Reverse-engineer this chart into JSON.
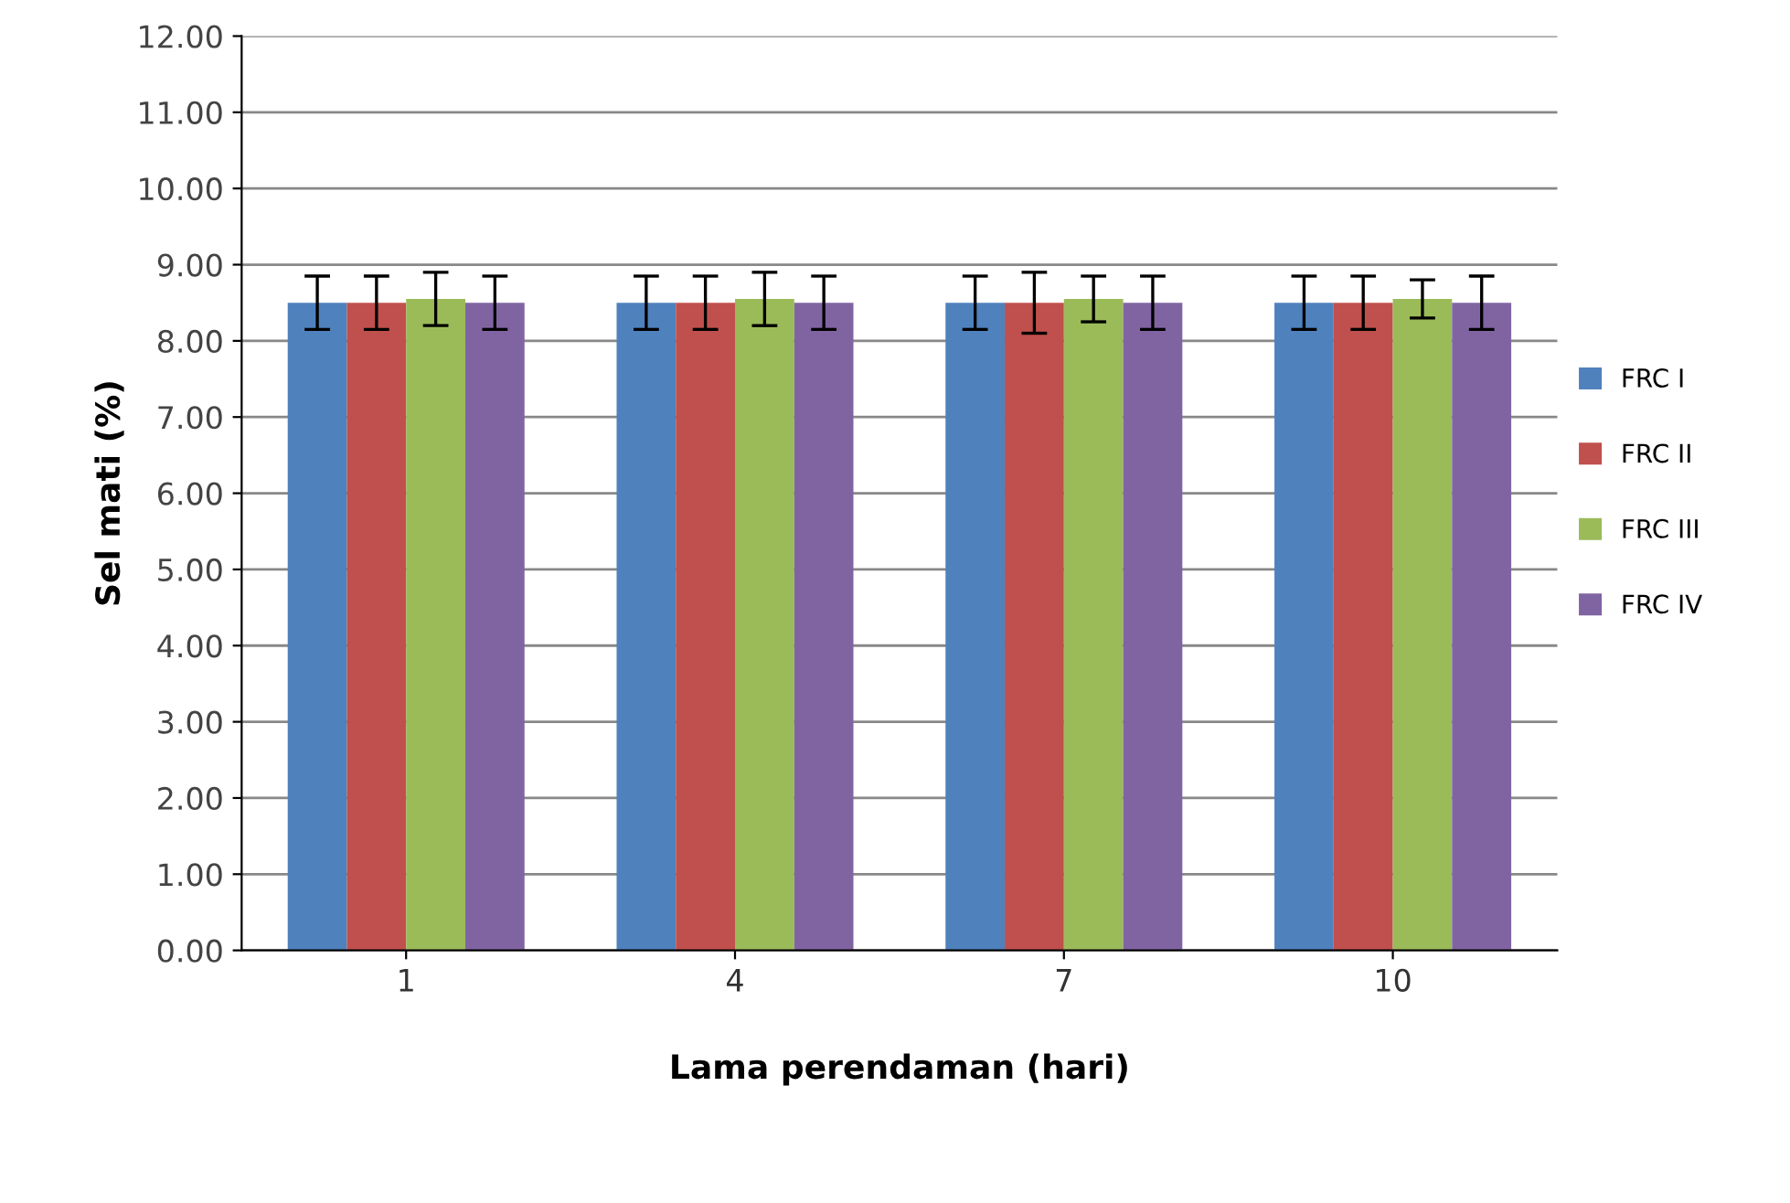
{
  "chart_data": {
    "type": "bar",
    "xlabel": "Lama perendaman (hari)",
    "ylabel": "Sel mati (%)",
    "categories": [
      "1",
      "4",
      "7",
      "10"
    ],
    "series": [
      {
        "name": "FRC I",
        "color": "#4f81bd",
        "values": [
          8.5,
          8.5,
          8.5,
          8.5
        ],
        "errors": [
          0.35,
          0.35,
          0.35,
          0.35
        ]
      },
      {
        "name": "FRC II",
        "color": "#c0504d",
        "values": [
          8.5,
          8.5,
          8.5,
          8.5
        ],
        "errors": [
          0.35,
          0.35,
          0.4,
          0.35
        ]
      },
      {
        "name": "FRC III",
        "color": "#9bbb59",
        "values": [
          8.55,
          8.55,
          8.55,
          8.55
        ],
        "errors": [
          0.35,
          0.35,
          0.3,
          0.25
        ]
      },
      {
        "name": "FRC IV",
        "color": "#8064a2",
        "values": [
          8.5,
          8.5,
          8.5,
          8.5
        ],
        "errors": [
          0.35,
          0.35,
          0.35,
          0.35
        ]
      }
    ],
    "ylim": [
      0,
      12
    ],
    "yticks": [
      {
        "value": 0,
        "label": "0.00"
      },
      {
        "value": 1,
        "label": "1.00"
      },
      {
        "value": 2,
        "label": "2.00"
      },
      {
        "value": 3,
        "label": "3.00"
      },
      {
        "value": 4,
        "label": "4.00"
      },
      {
        "value": 5,
        "label": "5.00"
      },
      {
        "value": 6,
        "label": "6.00"
      },
      {
        "value": 7,
        "label": "7.00"
      },
      {
        "value": 8,
        "label": "8.00"
      },
      {
        "value": 9,
        "label": "9.00"
      },
      {
        "value": 10,
        "label": "10.00"
      },
      {
        "value": 11,
        "label": "11.00"
      },
      {
        "value": 12,
        "label": "12.00"
      }
    ],
    "grid": "y",
    "legend": "right"
  }
}
